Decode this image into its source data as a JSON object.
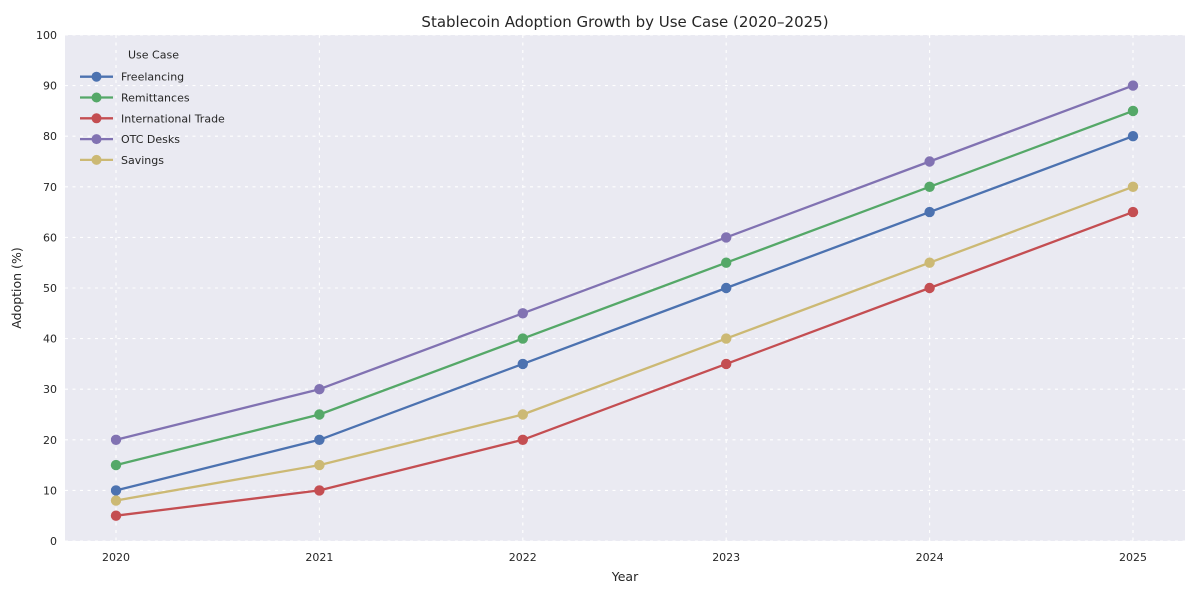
{
  "chart_data": {
    "type": "line",
    "title": "Stablecoin Adoption Growth by Use Case (2020–2025)",
    "xlabel": "Year",
    "ylabel": "Adoption (%)",
    "x": [
      2020,
      2021,
      2022,
      2023,
      2024,
      2025
    ],
    "ylim": [
      0,
      100
    ],
    "yticks": [
      0,
      10,
      20,
      30,
      40,
      50,
      60,
      70,
      80,
      90,
      100
    ],
    "grid": true,
    "grid_style": "dashed",
    "legend_title": "Use Case",
    "legend_position": "upper-left",
    "series": [
      {
        "name": "Freelancing",
        "color": "#4C72B0",
        "values": [
          10,
          20,
          35,
          50,
          65,
          80
        ]
      },
      {
        "name": "Remittances",
        "color": "#55A868",
        "values": [
          15,
          25,
          40,
          55,
          70,
          85
        ]
      },
      {
        "name": "International Trade",
        "color": "#C44E52",
        "values": [
          5,
          10,
          20,
          35,
          50,
          65
        ]
      },
      {
        "name": "OTC Desks",
        "color": "#8172B2",
        "values": [
          20,
          30,
          45,
          60,
          75,
          90
        ]
      },
      {
        "name": "Savings",
        "color": "#CCB974",
        "values": [
          8,
          15,
          25,
          40,
          55,
          70
        ]
      }
    ],
    "colors": {
      "plot_background": "#EAEAF2",
      "grid": "#FFFFFF",
      "text": "#262626"
    }
  }
}
